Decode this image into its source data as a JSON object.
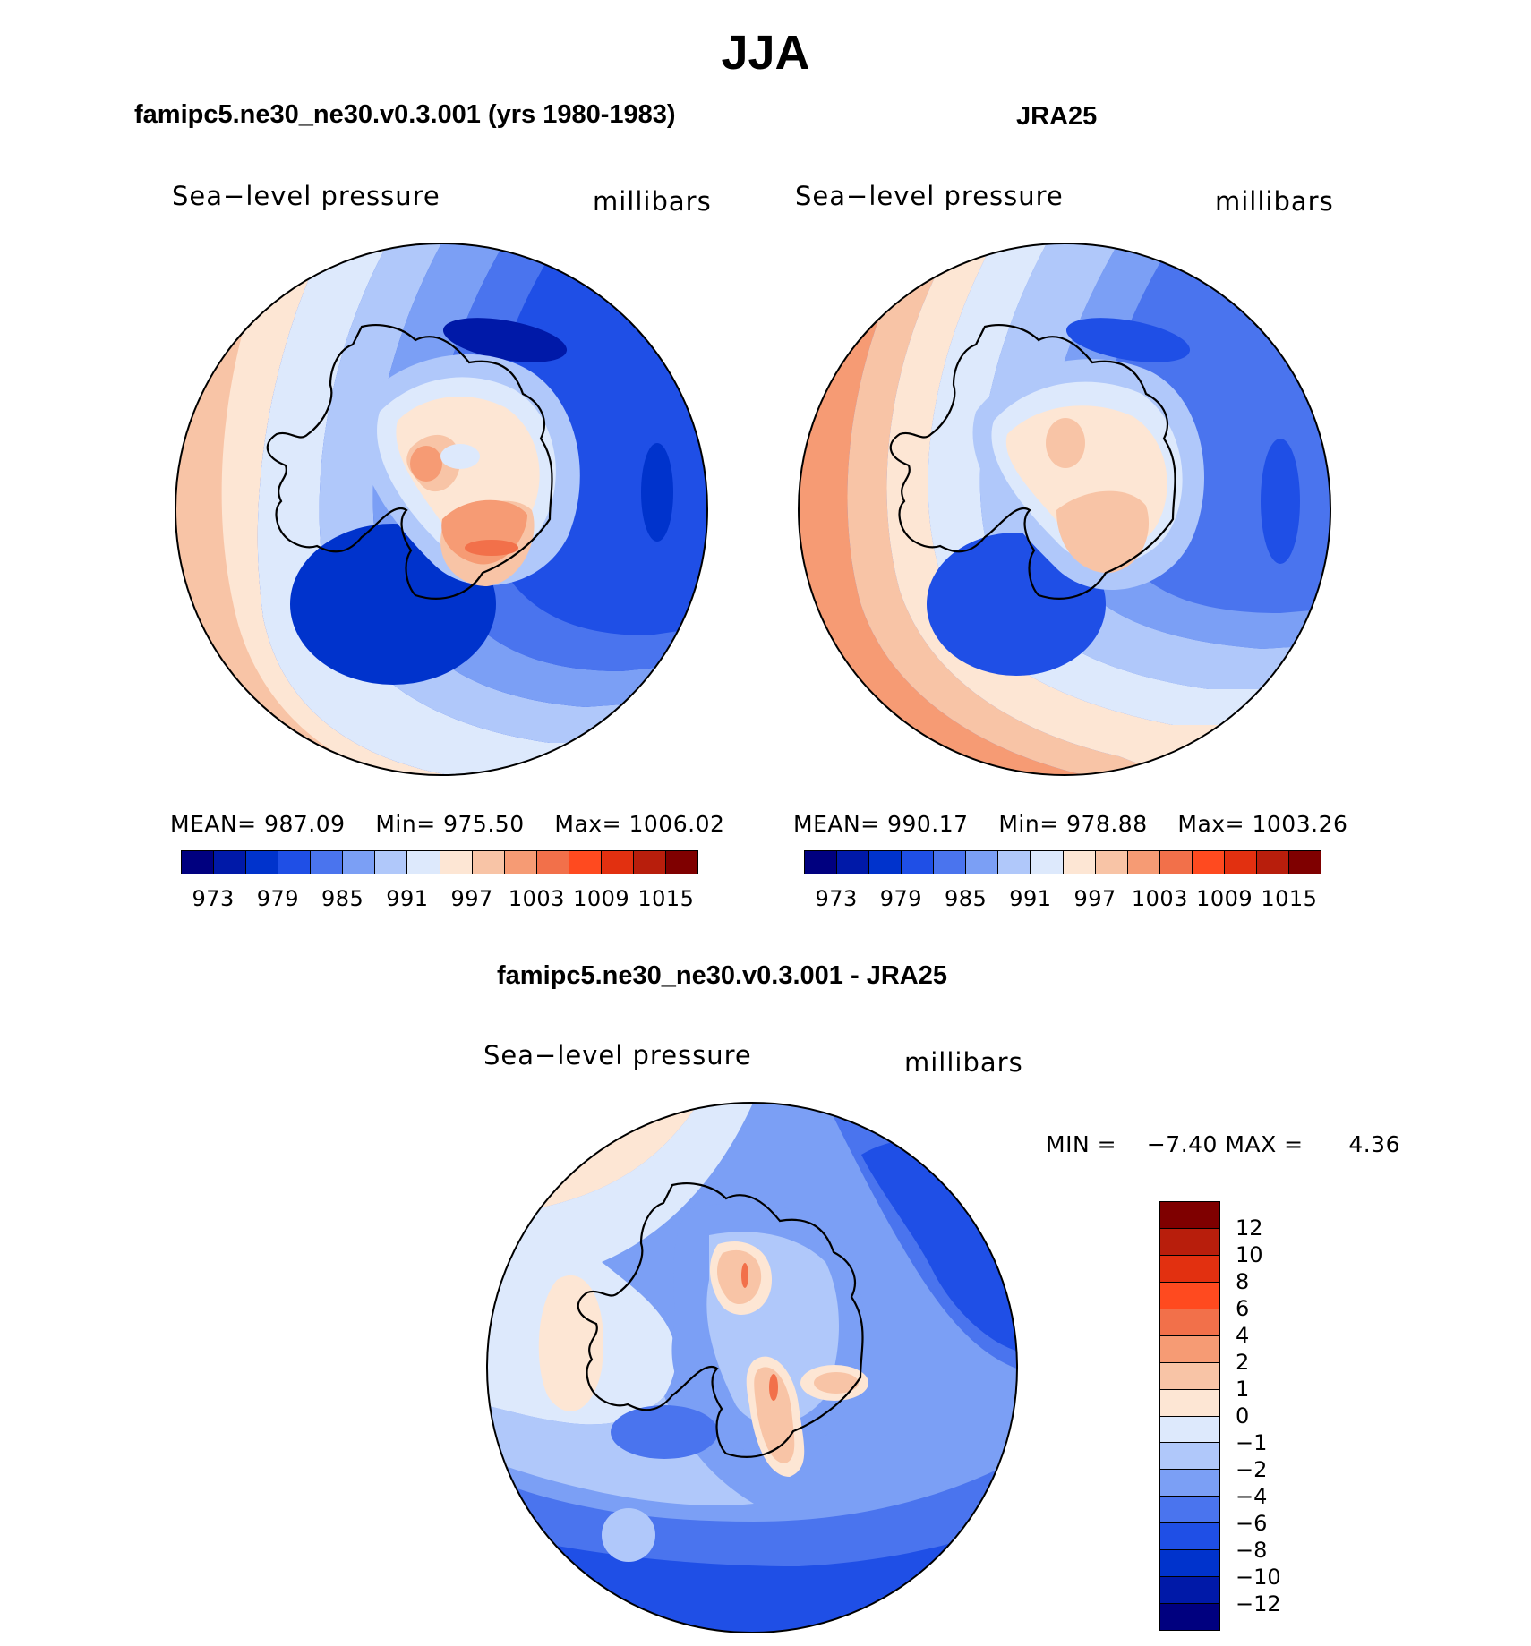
{
  "main_title": "JJA",
  "colors": {
    "scale13": [
      "#00007f",
      "#0019a8",
      "#0033cc",
      "#1f4fe6",
      "#4a74ee",
      "#7b9ff5",
      "#b0c8fa",
      "#dde9fc",
      "#fde6d4",
      "#f8c4a6",
      "#f69b74",
      "#f2704a",
      "#ff4a1f",
      "#e23010",
      "#b81e0c",
      "#7f0000"
    ]
  },
  "panels": {
    "model": {
      "title": "famipc5.ne30_ne30.v0.3.001 (yrs 1980-1983)",
      "variable": "Sea−level pressure",
      "units": "millibars",
      "stats": {
        "mean_label": "MEAN=",
        "mean": "987.09",
        "min_label": "Min=",
        "min": "975.50",
        "max_label": "Max=",
        "max": "1006.02"
      },
      "colorbar_ticks": [
        "973",
        "979",
        "985",
        "991",
        "997",
        "1003",
        "1009",
        "1015"
      ]
    },
    "obs": {
      "title": "JRA25",
      "variable": "Sea−level pressure",
      "units": "millibars",
      "stats": {
        "mean_label": "MEAN=",
        "mean": "990.17",
        "min_label": "Min=",
        "min": "978.88",
        "max_label": "Max=",
        "max": "1003.26"
      },
      "colorbar_ticks": [
        "973",
        "979",
        "985",
        "991",
        "997",
        "1003",
        "1009",
        "1015"
      ]
    },
    "diff": {
      "title": "famipc5.ne30_ne30.v0.3.001 - JRA25",
      "variable": "Sea−level pressure",
      "units": "millibars",
      "minmax": {
        "min_label": "MIN =",
        "min": "−7.40",
        "max_label": "MAX =",
        "max": "4.36"
      },
      "colorbar_ticks": [
        "12",
        "10",
        "8",
        "6",
        "4",
        "2",
        "1",
        "0",
        "−1",
        "−2",
        "−4",
        "−6",
        "−8",
        "−10",
        "−12"
      ],
      "colorbar_colors": [
        "#7f0000",
        "#b81e0c",
        "#e23010",
        "#ff4a1f",
        "#f2704a",
        "#f69b74",
        "#f8c4a6",
        "#fde6d4",
        "#dde9fc",
        "#b0c8fa",
        "#7b9ff5",
        "#4a74ee",
        "#1f4fe6",
        "#0033cc",
        "#0019a8",
        "#00007f"
      ]
    }
  }
}
